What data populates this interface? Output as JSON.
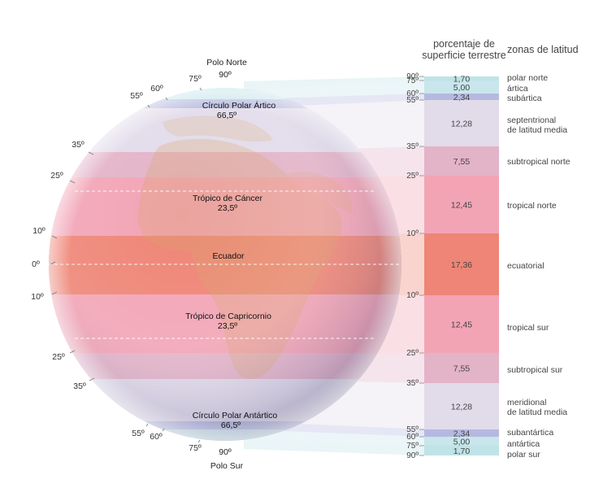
{
  "header": {
    "column1_line1": "porcentaje de",
    "column1_line2": "superficie terrestre",
    "column2": "zonas de latitud"
  },
  "globe": {
    "north_pole": "Polo Norte",
    "north_pole_deg": "90º",
    "south_pole": "Polo Sur",
    "south_pole_deg": "90º",
    "circles": [
      {
        "name": "Círculo Polar Ártico",
        "deg": "66,5º"
      },
      {
        "name": "Trópico de Cáncer",
        "deg": "23,5º"
      },
      {
        "name": "Ecuador",
        "deg": ""
      },
      {
        "name": "Trópico de Capricornio",
        "deg": "23,5º"
      },
      {
        "name": "Círculo Polar Antártico",
        "deg": "66,5º"
      }
    ],
    "rim_labels": [
      {
        "text": "75º"
      },
      {
        "text": "60º"
      },
      {
        "text": "55º"
      },
      {
        "text": "35º"
      },
      {
        "text": "25º"
      },
      {
        "text": "10º"
      },
      {
        "text": "0º"
      },
      {
        "text": "10º"
      },
      {
        "text": "25º"
      },
      {
        "text": "35º"
      },
      {
        "text": "55º"
      },
      {
        "text": "60º"
      },
      {
        "text": "75º"
      }
    ]
  },
  "chart_data": {
    "type": "table",
    "columns": [
      "porcentaje de superficie terrestre",
      "zonas de latitud"
    ],
    "boundaries": [
      "90º",
      "75º",
      "60º",
      "55º",
      "35º",
      "25º",
      "10º",
      "10º",
      "25º",
      "35º",
      "55º",
      "60º",
      "75º",
      "90º"
    ],
    "zones": [
      {
        "name": "polar norte",
        "value": "1,70",
        "color": "#bfe3e6"
      },
      {
        "name": "ártica",
        "value": "5,00",
        "color": "#c8e6ec"
      },
      {
        "name": "subártica",
        "value": "2,34",
        "color": "#b6b9df"
      },
      {
        "name": "septentrional de latitud media",
        "value": "12,28",
        "color": "#e2dbea"
      },
      {
        "name": "subtropical norte",
        "value": "7,55",
        "color": "#e3b3c8"
      },
      {
        "name": "tropical norte",
        "value": "12,45",
        "color": "#f2a4b5"
      },
      {
        "name": "ecuatorial",
        "value": "17,36",
        "color": "#ee8576"
      },
      {
        "name": "tropical sur",
        "value": "12,45",
        "color": "#f2a4b5"
      },
      {
        "name": "subtropical sur",
        "value": "7,55",
        "color": "#e3b3c8"
      },
      {
        "name": "meridional de latitud media",
        "value": "12,28",
        "color": "#e2dbea"
      },
      {
        "name": "subantártica",
        "value": "2,34",
        "color": "#b6b9df"
      },
      {
        "name": "antártica",
        "value": "5,00",
        "color": "#c8e6ec"
      },
      {
        "name": "polar sur",
        "value": "1,70",
        "color": "#bfe3e6"
      }
    ]
  }
}
